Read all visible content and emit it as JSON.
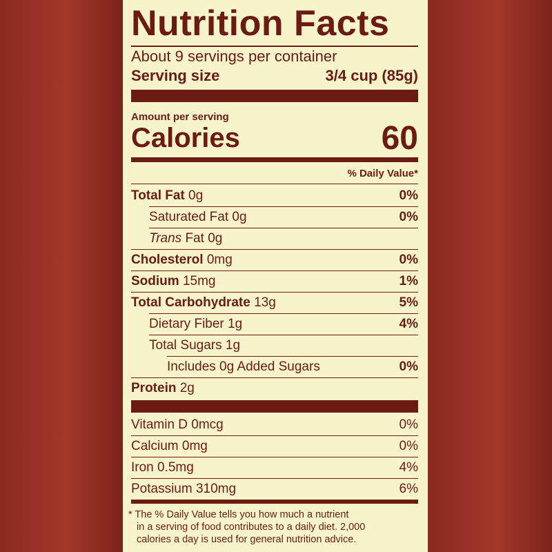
{
  "title": "Nutrition Facts",
  "servings_per_container": "About 9 servings per container",
  "serving_size": {
    "label": "Serving size",
    "value": "3/4 cup (85g)"
  },
  "amount_per_serving": "Amount per serving",
  "calories": {
    "label": "Calories",
    "value": "60"
  },
  "daily_value_header": "% Daily Value*",
  "nutrients": [
    {
      "name": "Total Fat",
      "amount": "0g",
      "dv": "0%"
    },
    {
      "name": "Saturated Fat",
      "amount": "0g",
      "dv": "0%"
    },
    {
      "name_italic": "Trans",
      "name": "Fat",
      "amount": "0g"
    },
    {
      "name": "Cholesterol",
      "amount": "0mg",
      "dv": "0%"
    },
    {
      "name": "Sodium",
      "amount": "15mg",
      "dv": "1%"
    },
    {
      "name": "Total Carbohydrate",
      "amount": "13g",
      "dv": "5%"
    },
    {
      "name": "Dietary Fiber",
      "amount": "1g",
      "dv": "4%"
    },
    {
      "name": "Total Sugars",
      "amount": "1g"
    },
    {
      "name": "Includes 0g Added Sugars",
      "dv": "0%"
    },
    {
      "name": "Protein",
      "amount": "2g"
    }
  ],
  "vitamins": [
    {
      "name": "Vitamin D 0mcg",
      "dv": "0%"
    },
    {
      "name": "Calcium 0mg",
      "dv": "0%"
    },
    {
      "name": "Iron 0.5mg",
      "dv": "4%"
    },
    {
      "name": "Potassium 310mg",
      "dv": "6%"
    }
  ],
  "footnote": [
    "* The % Daily Value tells you how much a nutrient",
    "in a serving of food contributes to a daily diet. 2,000",
    "calories a day is used for general nutrition advice."
  ]
}
